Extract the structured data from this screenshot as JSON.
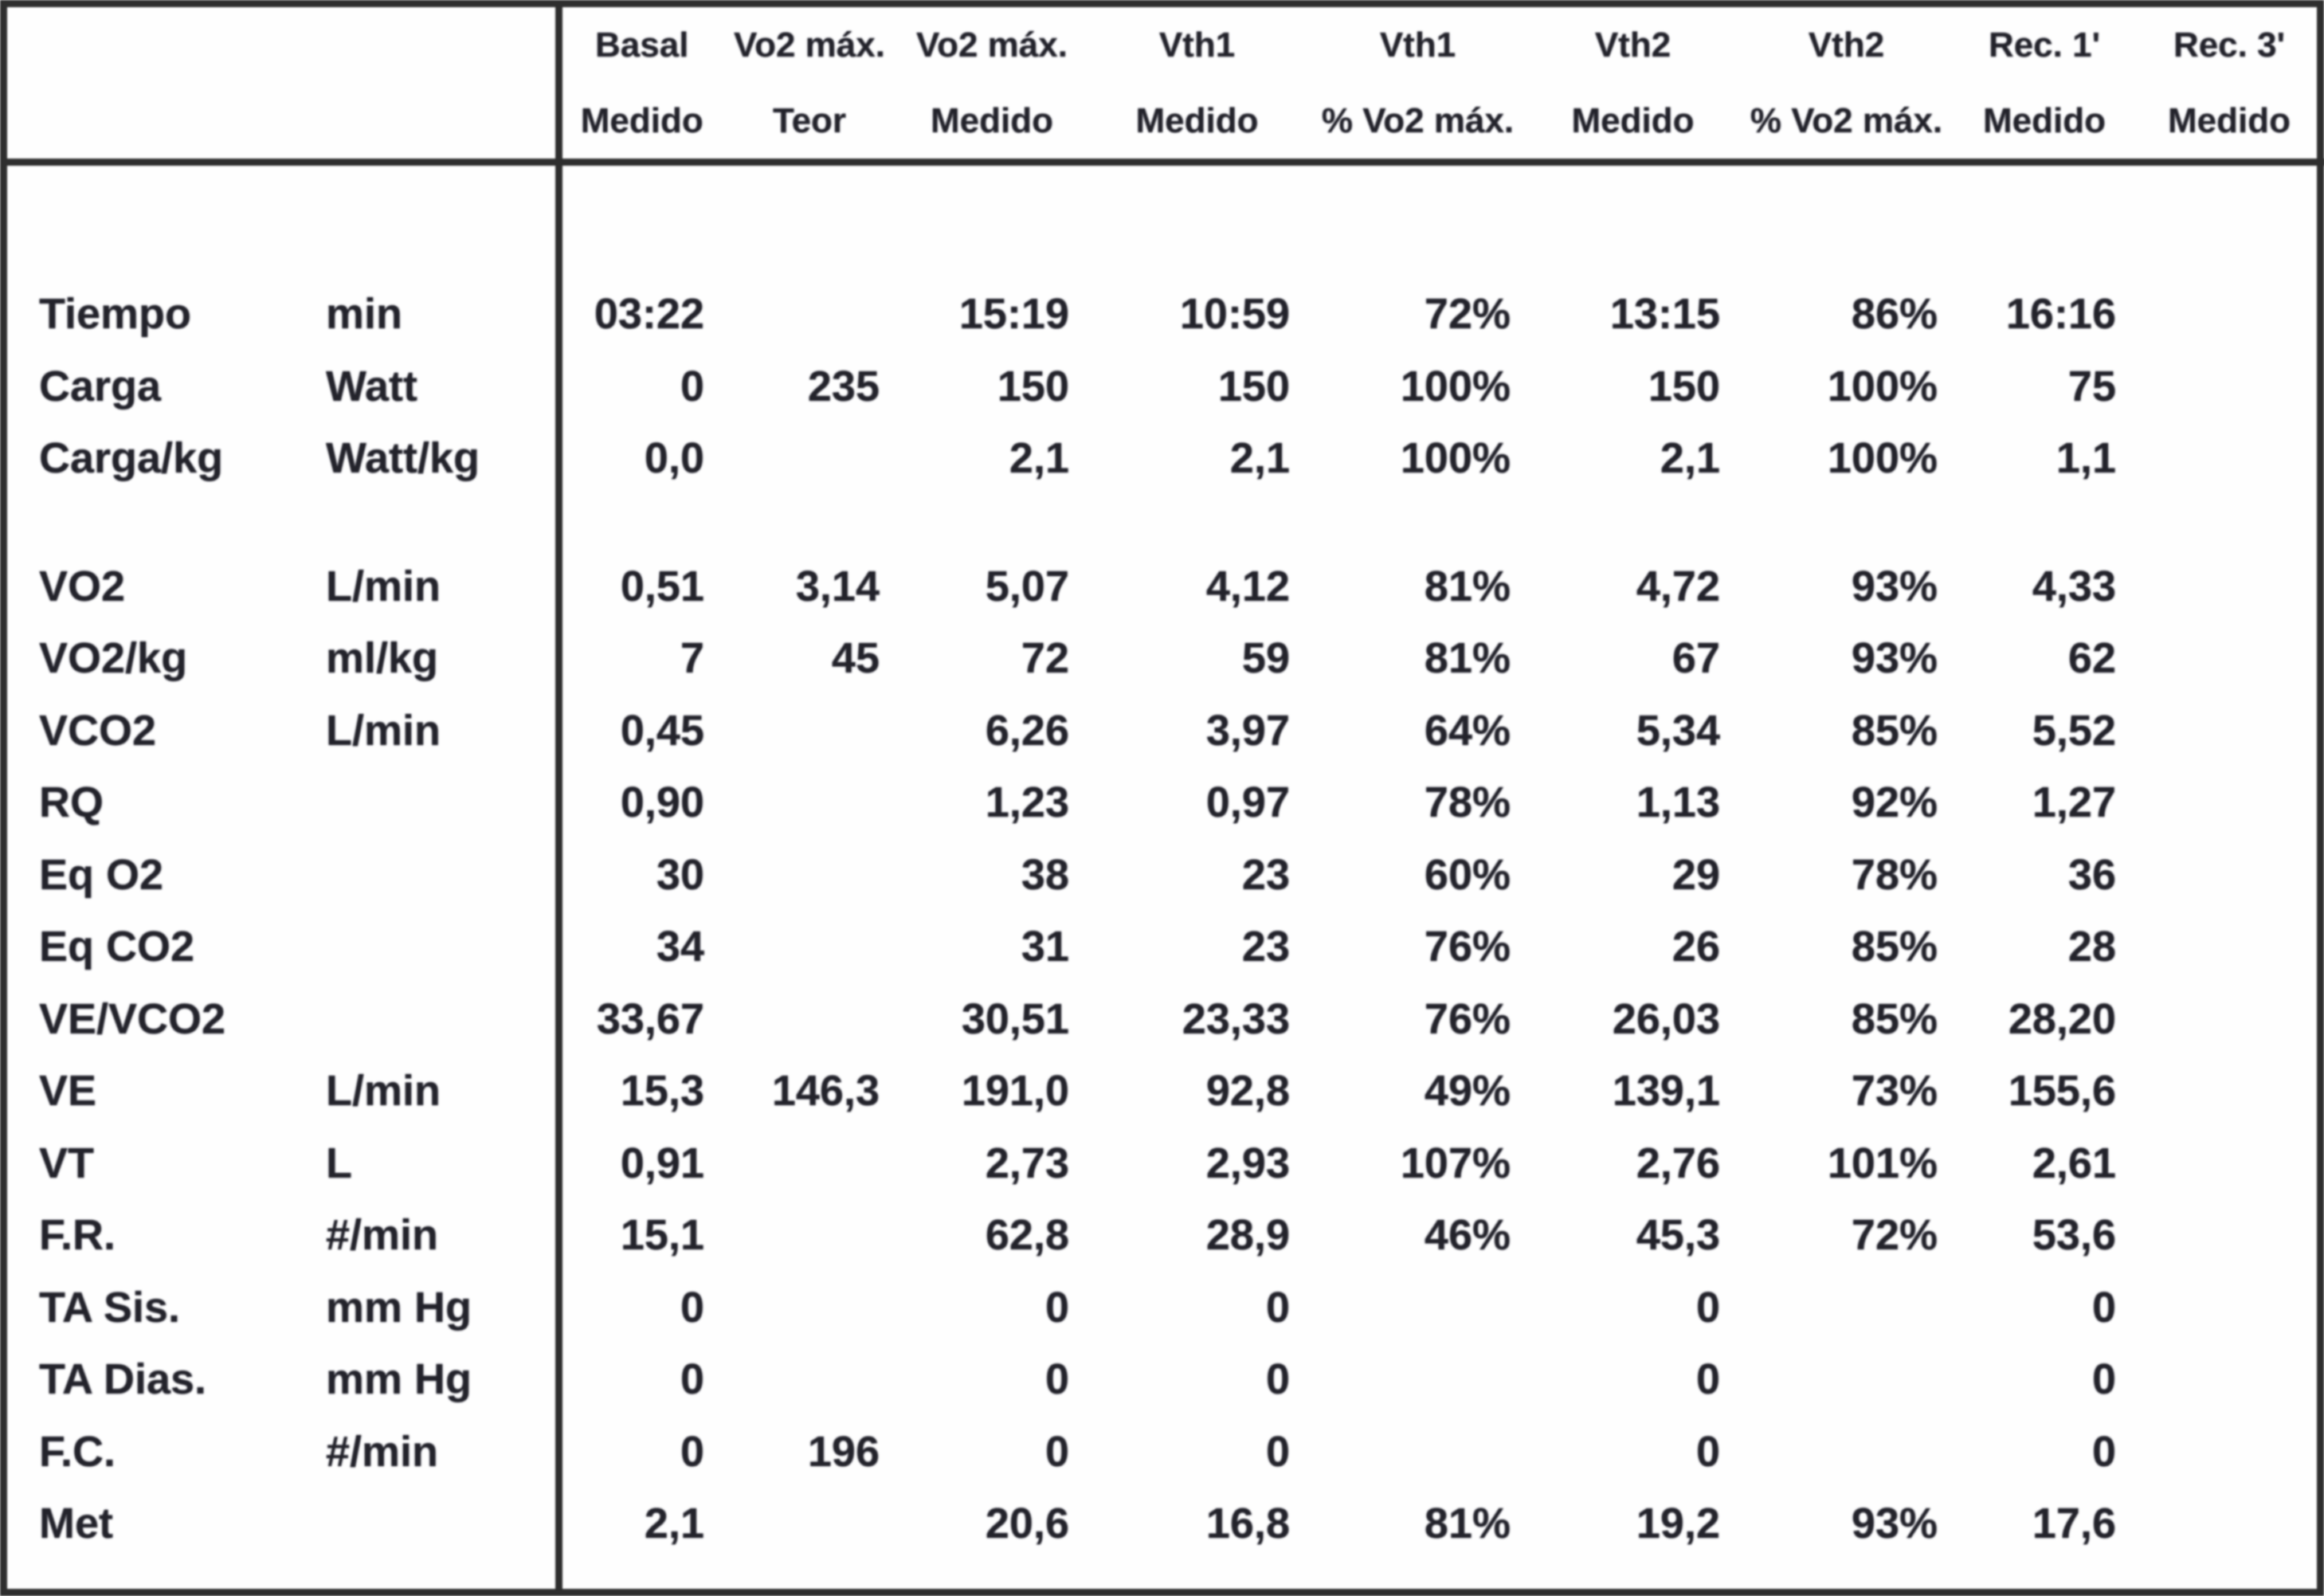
{
  "document": {
    "type": "cardiopulmonary-exercise-test-report-table",
    "language": "es",
    "text_color": "#23232b",
    "border_color": "#2e2e2e",
    "background_color": "#fefefe"
  },
  "table": {
    "columns": [
      {
        "line1": "Basal",
        "line2": "Medido"
      },
      {
        "line1": "Vo2 máx.",
        "line2": "Teor"
      },
      {
        "line1": "Vo2 máx.",
        "line2": "Medido"
      },
      {
        "line1": "Vth1",
        "line2": "Medido"
      },
      {
        "line1": "Vth1",
        "line2": "% Vo2 máx."
      },
      {
        "line1": "Vth2",
        "line2": "Medido"
      },
      {
        "line1": "Vth2",
        "line2": "% Vo2 máx."
      },
      {
        "line1": "Rec. 1'",
        "line2": "Medido"
      },
      {
        "line1": "Rec. 3'",
        "line2": "Medido"
      }
    ],
    "sections": [
      {
        "rows": [
          {
            "label": "Tiempo",
            "unit": "min",
            "values": [
              "03:22",
              "",
              "15:19",
              "10:59",
              "72%",
              "13:15",
              "86%",
              "16:16",
              ""
            ]
          },
          {
            "label": "Carga",
            "unit": "Watt",
            "values": [
              "0",
              "235",
              "150",
              "150",
              "100%",
              "150",
              "100%",
              "75",
              ""
            ]
          },
          {
            "label": "Carga/kg",
            "unit": "Watt/kg",
            "values": [
              "0,0",
              "",
              "2,1",
              "2,1",
              "100%",
              "2,1",
              "100%",
              "1,1",
              ""
            ]
          }
        ]
      },
      {
        "rows": [
          {
            "label": "VO2",
            "unit": "L/min",
            "values": [
              "0,51",
              "3,14",
              "5,07",
              "4,12",
              "81%",
              "4,72",
              "93%",
              "4,33",
              ""
            ]
          },
          {
            "label": "VO2/kg",
            "unit": "ml/kg",
            "values": [
              "7",
              "45",
              "72",
              "59",
              "81%",
              "67",
              "93%",
              "62",
              ""
            ]
          },
          {
            "label": "VCO2",
            "unit": "L/min",
            "values": [
              "0,45",
              "",
              "6,26",
              "3,97",
              "64%",
              "5,34",
              "85%",
              "5,52",
              ""
            ]
          },
          {
            "label": "RQ",
            "unit": "",
            "values": [
              "0,90",
              "",
              "1,23",
              "0,97",
              "78%",
              "1,13",
              "92%",
              "1,27",
              ""
            ]
          },
          {
            "label": "Eq O2",
            "unit": "",
            "values": [
              "30",
              "",
              "38",
              "23",
              "60%",
              "29",
              "78%",
              "36",
              ""
            ]
          },
          {
            "label": "Eq CO2",
            "unit": "",
            "values": [
              "34",
              "",
              "31",
              "23",
              "76%",
              "26",
              "85%",
              "28",
              ""
            ]
          },
          {
            "label": "VE/VCO2",
            "unit": "",
            "values": [
              "33,67",
              "",
              "30,51",
              "23,33",
              "76%",
              "26,03",
              "85%",
              "28,20",
              ""
            ]
          },
          {
            "label": "VE",
            "unit": "L/min",
            "values": [
              "15,3",
              "146,3",
              "191,0",
              "92,8",
              "49%",
              "139,1",
              "73%",
              "155,6",
              ""
            ]
          },
          {
            "label": "VT",
            "unit": "L",
            "values": [
              "0,91",
              "",
              "2,73",
              "2,93",
              "107%",
              "2,76",
              "101%",
              "2,61",
              ""
            ]
          },
          {
            "label": "F.R.",
            "unit": "#/min",
            "values": [
              "15,1",
              "",
              "62,8",
              "28,9",
              "46%",
              "45,3",
              "72%",
              "53,6",
              ""
            ]
          },
          {
            "label": "TA Sis.",
            "unit": "mm Hg",
            "values": [
              "0",
              "",
              "0",
              "0",
              "",
              "0",
              "",
              "0",
              ""
            ]
          },
          {
            "label": "TA Dias.",
            "unit": "mm Hg",
            "values": [
              "0",
              "",
              "0",
              "0",
              "",
              "0",
              "",
              "0",
              ""
            ]
          },
          {
            "label": "F.C.",
            "unit": "#/min",
            "values": [
              "0",
              "196",
              "0",
              "0",
              "",
              "0",
              "",
              "0",
              ""
            ]
          },
          {
            "label": "Met",
            "unit": "",
            "values": [
              "2,1",
              "",
              "20,6",
              "16,8",
              "81%",
              "19,2",
              "93%",
              "17,6",
              ""
            ]
          }
        ]
      }
    ]
  }
}
